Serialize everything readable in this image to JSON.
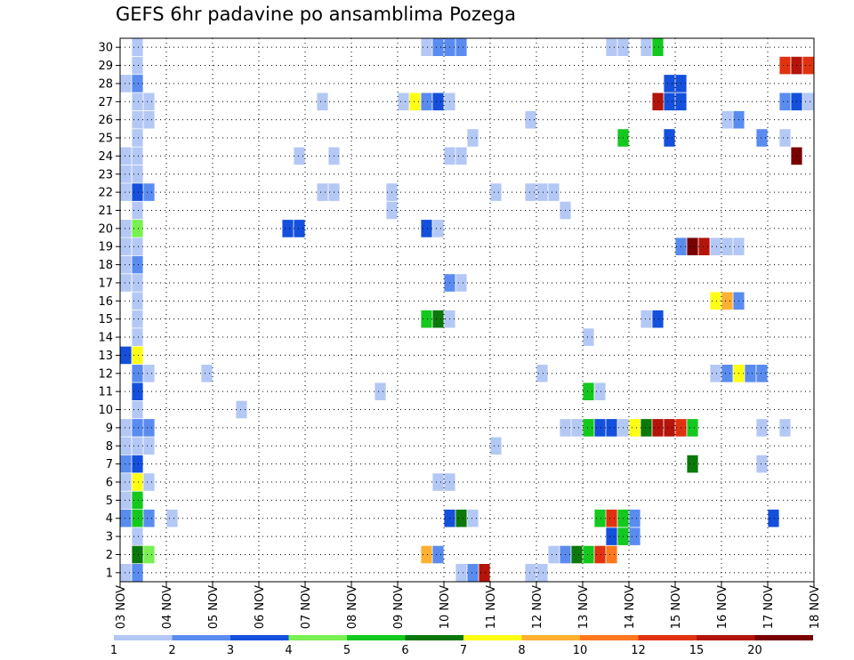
{
  "chart_data": {
    "type": "heatmap",
    "title": "GEFS 6hr padavine po ansamblima Pozega",
    "xlabel": "",
    "ylabel": "",
    "x_tick_labels": [
      "03 NOV",
      "04 NOV",
      "05 NOV",
      "06 NOV",
      "07 NOV",
      "08 NOV",
      "09 NOV",
      "10 NOV",
      "11 NOV",
      "12 NOV",
      "13 NOV",
      "14 NOV",
      "15 NOV",
      "16 NOV",
      "17 NOV",
      "18 NOV"
    ],
    "y_tick_labels": [
      "1",
      "2",
      "3",
      "4",
      "5",
      "6",
      "7",
      "8",
      "9",
      "10",
      "11",
      "12",
      "13",
      "14",
      "15",
      "16",
      "17",
      "18",
      "19",
      "20",
      "21",
      "22",
      "23",
      "24",
      "25",
      "26",
      "27",
      "28",
      "29",
      "30"
    ],
    "xlim": [
      0,
      60
    ],
    "ylim": [
      0.5,
      30.5
    ],
    "x_unit": "6-hour steps from 03 NOV 00Z",
    "grid": true,
    "legend": {
      "position": "bottom",
      "labels": [
        "1",
        "2",
        "3",
        "4",
        "5",
        "6",
        "7",
        "8",
        "10",
        "12",
        "15",
        "20"
      ],
      "colors": [
        "#b4c8f5",
        "#5a8cf0",
        "#1450dc",
        "#78f050",
        "#14c81e",
        "#0a780a",
        "#ffff14",
        "#ffaf32",
        "#ff781e",
        "#e1320f",
        "#b4140a",
        "#780000"
      ]
    },
    "cells": [
      [
        30,
        2,
        1
      ],
      [
        29,
        2,
        1
      ],
      [
        28,
        1,
        1
      ],
      [
        28,
        2,
        2
      ],
      [
        27,
        2,
        1
      ],
      [
        26,
        2,
        1
      ],
      [
        25,
        2,
        1
      ],
      [
        24,
        1,
        1
      ],
      [
        24,
        2,
        1
      ],
      [
        23,
        1,
        1
      ],
      [
        23,
        2,
        1
      ],
      [
        22,
        1,
        1
      ],
      [
        22,
        2,
        3
      ],
      [
        22,
        3,
        2
      ],
      [
        21,
        2,
        1
      ],
      [
        20,
        1,
        1
      ],
      [
        20,
        2,
        4
      ],
      [
        19,
        1,
        1
      ],
      [
        19,
        2,
        1
      ],
      [
        18,
        1,
        1
      ],
      [
        18,
        2,
        2
      ],
      [
        17,
        1,
        1
      ],
      [
        17,
        2,
        1
      ],
      [
        16,
        2,
        1
      ],
      [
        15,
        2,
        1
      ],
      [
        14,
        2,
        1
      ],
      [
        13,
        1,
        3
      ],
      [
        13,
        2,
        7
      ],
      [
        12,
        2,
        2
      ],
      [
        12,
        3,
        1
      ],
      [
        11,
        2,
        3
      ],
      [
        10,
        2,
        1
      ],
      [
        9,
        1,
        1
      ],
      [
        9,
        2,
        2
      ],
      [
        9,
        3,
        2
      ],
      [
        8,
        1,
        1
      ],
      [
        8,
        2,
        1
      ],
      [
        8,
        3,
        1
      ],
      [
        7,
        1,
        2
      ],
      [
        7,
        2,
        3
      ],
      [
        6,
        1,
        1
      ],
      [
        6,
        2,
        7
      ],
      [
        6,
        3,
        1
      ],
      [
        5,
        1,
        1
      ],
      [
        5,
        2,
        5
      ],
      [
        4,
        1,
        2
      ],
      [
        4,
        2,
        5
      ],
      [
        4,
        3,
        2
      ],
      [
        3,
        2,
        1
      ],
      [
        2,
        2,
        6
      ],
      [
        2,
        3,
        4
      ],
      [
        1,
        1,
        1
      ],
      [
        1,
        2,
        2
      ],
      [
        27,
        3,
        1
      ],
      [
        26,
        3,
        1
      ],
      [
        4,
        5,
        1
      ],
      [
        12,
        8,
        1
      ],
      [
        10,
        11,
        1
      ],
      [
        20,
        15,
        3
      ],
      [
        20,
        16,
        3
      ],
      [
        24,
        16,
        1
      ],
      [
        27,
        18,
        1
      ],
      [
        24,
        19,
        1
      ],
      [
        22,
        18,
        1
      ],
      [
        22,
        19,
        1
      ],
      [
        21,
        24,
        1
      ],
      [
        22,
        24,
        1
      ],
      [
        11,
        23,
        1
      ],
      [
        30,
        27,
        1
      ],
      [
        30,
        28,
        2
      ],
      [
        30,
        29,
        2
      ],
      [
        30,
        30,
        2
      ],
      [
        27,
        25,
        1
      ],
      [
        27,
        26,
        7
      ],
      [
        27,
        27,
        2
      ],
      [
        27,
        28,
        3
      ],
      [
        27,
        29,
        1
      ],
      [
        20,
        27,
        3
      ],
      [
        20,
        28,
        1
      ],
      [
        15,
        27,
        5
      ],
      [
        15,
        28,
        6
      ],
      [
        15,
        29,
        1
      ],
      [
        2,
        27,
        8
      ],
      [
        2,
        28,
        2
      ],
      [
        4,
        29,
        3
      ],
      [
        4,
        30,
        6
      ],
      [
        4,
        31,
        1
      ],
      [
        24,
        29,
        1
      ],
      [
        24,
        30,
        1
      ],
      [
        25,
        31,
        1
      ],
      [
        17,
        29,
        2
      ],
      [
        17,
        30,
        1
      ],
      [
        6,
        28,
        1
      ],
      [
        6,
        29,
        1
      ],
      [
        1,
        30,
        1
      ],
      [
        1,
        31,
        2
      ],
      [
        1,
        32,
        11
      ],
      [
        8,
        33,
        1
      ],
      [
        26,
        36,
        1
      ],
      [
        22,
        33,
        1
      ],
      [
        22,
        36,
        1
      ],
      [
        22,
        37,
        1
      ],
      [
        22,
        38,
        1
      ],
      [
        21,
        39,
        1
      ],
      [
        2,
        38,
        1
      ],
      [
        1,
        36,
        1
      ],
      [
        1,
        37,
        1
      ],
      [
        12,
        37,
        1
      ],
      [
        9,
        39,
        1
      ],
      [
        9,
        40,
        1
      ],
      [
        2,
        39,
        2
      ],
      [
        2,
        40,
        6
      ],
      [
        2,
        41,
        5
      ],
      [
        2,
        42,
        10
      ],
      [
        2,
        43,
        9
      ],
      [
        14,
        41,
        1
      ],
      [
        11,
        41,
        5
      ],
      [
        11,
        42,
        1
      ],
      [
        4,
        42,
        5
      ],
      [
        4,
        43,
        10
      ],
      [
        4,
        44,
        5
      ],
      [
        4,
        45,
        2
      ],
      [
        3,
        43,
        3
      ],
      [
        3,
        44,
        5
      ],
      [
        3,
        45,
        2
      ],
      [
        9,
        41,
        5
      ],
      [
        9,
        42,
        3
      ],
      [
        9,
        43,
        3
      ],
      [
        9,
        44,
        1
      ],
      [
        9,
        45,
        7
      ],
      [
        9,
        46,
        6
      ],
      [
        9,
        47,
        11
      ],
      [
        9,
        48,
        11
      ],
      [
        9,
        49,
        10
      ],
      [
        9,
        50,
        5
      ],
      [
        30,
        43,
        1
      ],
      [
        30,
        44,
        1
      ],
      [
        30,
        46,
        1
      ],
      [
        30,
        47,
        5
      ],
      [
        25,
        44,
        5
      ],
      [
        27,
        47,
        11
      ],
      [
        28,
        48,
        3
      ],
      [
        28,
        49,
        3
      ],
      [
        27,
        48,
        3
      ],
      [
        27,
        49,
        3
      ],
      [
        25,
        48,
        3
      ],
      [
        15,
        46,
        1
      ],
      [
        15,
        47,
        3
      ],
      [
        7,
        50,
        6
      ],
      [
        19,
        49,
        2
      ],
      [
        19,
        50,
        12
      ],
      [
        19,
        51,
        11
      ],
      [
        19,
        52,
        1
      ],
      [
        19,
        53,
        1
      ],
      [
        19,
        54,
        1
      ],
      [
        16,
        52,
        7
      ],
      [
        16,
        53,
        8
      ],
      [
        16,
        54,
        2
      ],
      [
        12,
        52,
        1
      ],
      [
        12,
        53,
        2
      ],
      [
        12,
        54,
        7
      ],
      [
        12,
        55,
        2
      ],
      [
        12,
        56,
        2
      ],
      [
        26,
        53,
        1
      ],
      [
        26,
        54,
        2
      ],
      [
        25,
        56,
        2
      ],
      [
        9,
        56,
        1
      ],
      [
        9,
        58,
        1
      ],
      [
        7,
        56,
        1
      ],
      [
        4,
        57,
        3
      ],
      [
        29,
        58,
        10
      ],
      [
        29,
        59,
        11
      ],
      [
        29,
        60,
        10
      ],
      [
        27,
        58,
        2
      ],
      [
        27,
        59,
        3
      ],
      [
        27,
        60,
        1
      ],
      [
        25,
        58,
        1
      ],
      [
        24,
        59,
        12
      ]
    ]
  }
}
